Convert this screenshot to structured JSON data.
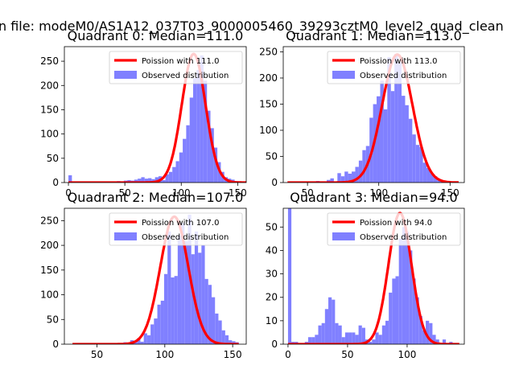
{
  "figure": {
    "suptitle": "n file: modeM0/AS1A12_037T03_9000005460_39293cztM0_level2_quad_clean"
  },
  "colors": {
    "bars": "#8080ff",
    "line": "#ff0000",
    "axes": "#000000"
  },
  "chart_data": [
    {
      "type": "bar",
      "title": "Quadrant 0: Median=111.0",
      "xlim": [
        -3.6,
        157.6
      ],
      "ylim": [
        0,
        280
      ],
      "xticks": [
        0,
        50,
        100,
        150
      ],
      "yticks": [
        0,
        50,
        100,
        150,
        200,
        250
      ],
      "legend": {
        "placement": "top-right",
        "line_label": "Poission with 111.0",
        "bar_label": "Observed distribution"
      },
      "poisson_mean": 111.0,
      "poisson_peak": 265,
      "bins": {
        "start": 0,
        "width": 3.07
      },
      "values": [
        15,
        2,
        1,
        2,
        2,
        1,
        1,
        1,
        1,
        1,
        2,
        1,
        1,
        2,
        3,
        2,
        4,
        5,
        4,
        6,
        8,
        11,
        8,
        9,
        7,
        11,
        13,
        5,
        17,
        22,
        32,
        44,
        62,
        90,
        118,
        175,
        215,
        232,
        262,
        210,
        148,
        112,
        72,
        42,
        22,
        11,
        8,
        6,
        3,
        1,
        2,
        1,
        0
      ]
    },
    {
      "type": "bar",
      "title": "Quadrant 1: Median=113.0",
      "xlim": [
        33,
        160
      ],
      "ylim": [
        0,
        260
      ],
      "xticks": [
        50,
        100,
        150
      ],
      "yticks": [
        0,
        50,
        100,
        150,
        200,
        250
      ],
      "legend": {
        "placement": "top-right",
        "line_label": "Poission with 113.0",
        "bar_label": "Observed distribution"
      },
      "poisson_mean": 113.0,
      "poisson_peak": 245,
      "bins": {
        "start": 36,
        "width": 2.5
      },
      "values": [
        1,
        1,
        1,
        1,
        1,
        1,
        1,
        2,
        3,
        2,
        2,
        5,
        8,
        2,
        18,
        12,
        21,
        17,
        21,
        30,
        42,
        62,
        70,
        124,
        150,
        165,
        195,
        140,
        240,
        175,
        246,
        230,
        166,
        148,
        122,
        92,
        72,
        68,
        38,
        28,
        18,
        12,
        6,
        4,
        2,
        2,
        1,
        1
      ]
    },
    {
      "type": "bar",
      "title": "Quadrant 2: Median=107.0",
      "xlim": [
        26,
        160
      ],
      "ylim": [
        0,
        275
      ],
      "xticks": [
        50,
        100,
        150
      ],
      "yticks": [
        0,
        50,
        100,
        150,
        200,
        250
      ],
      "legend": {
        "placement": "top-right",
        "line_label": "Poission with 107.0",
        "bar_label": "Observed distribution"
      },
      "poisson_mean": 107.0,
      "poisson_peak": 258,
      "bins": {
        "start": 32,
        "width": 2.5
      },
      "values": [
        1,
        1,
        1,
        1,
        1,
        1,
        1,
        1,
        1,
        1,
        1,
        1,
        1,
        2,
        1,
        4,
        2,
        8,
        6,
        12,
        5,
        22,
        18,
        40,
        52,
        80,
        88,
        142,
        228,
        135,
        138,
        220,
        245,
        208,
        262,
        182,
        228,
        185,
        200,
        132,
        120,
        95,
        62,
        48,
        28,
        18,
        8,
        6,
        4
      ]
    },
    {
      "type": "bar",
      "title": "Quadrant 3: Median=94.0",
      "xlim": [
        -4,
        148
      ],
      "ylim": [
        0,
        58
      ],
      "xticks": [
        0,
        50,
        100
      ],
      "yticks": [
        0,
        10,
        20,
        30,
        40,
        50
      ],
      "legend": {
        "placement": "top-right",
        "line_label": "Poission with 94.0",
        "bar_label": "Observed distribution"
      },
      "poisson_mean": 94.0,
      "poisson_peak": 56,
      "bins": {
        "start": 0,
        "width": 2.82
      },
      "values": [
        58,
        1,
        1,
        0,
        0,
        1,
        3,
        3,
        4,
        8,
        9,
        15,
        20,
        19,
        9,
        8,
        3,
        5,
        5,
        5,
        4,
        8,
        7,
        2,
        1,
        2,
        5,
        4,
        8,
        10,
        22,
        28,
        29,
        45,
        50,
        48,
        40,
        28,
        20,
        12,
        6,
        10,
        9,
        4,
        2,
        0,
        2,
        0,
        1,
        0,
        0
      ]
    }
  ]
}
